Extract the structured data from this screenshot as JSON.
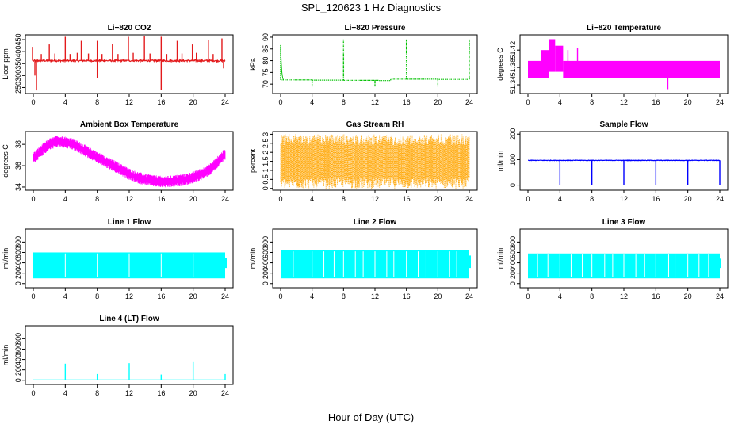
{
  "figure": {
    "title": "SPL_120623  1 Hz Diagnostics",
    "xlabel": "Hour of Day (UTC)"
  },
  "chart_data": [
    {
      "type": "line",
      "title": "Li−820 CO2",
      "ylabel": "Licor ppm",
      "color": "#e31a1c",
      "xlim": [
        0,
        24
      ],
      "ylim": [
        225,
        470
      ],
      "xticks": [
        0,
        4,
        8,
        12,
        16,
        20,
        24
      ],
      "yticks": [
        250,
        300,
        350,
        400,
        450
      ],
      "baseline": 362,
      "noise": 7,
      "spikes": [
        [
          -0.1,
          420
        ],
        [
          0.2,
          300
        ],
        [
          0.4,
          238
        ],
        [
          1.0,
          390
        ],
        [
          2.0,
          430
        ],
        [
          2.7,
          392
        ],
        [
          4.0,
          462
        ],
        [
          4.6,
          390
        ],
        [
          5.5,
          395
        ],
        [
          6.0,
          445
        ],
        [
          6.9,
          392
        ],
        [
          8.0,
          445
        ],
        [
          8.0,
          290
        ],
        [
          8.6,
          390
        ],
        [
          9.9,
          432
        ],
        [
          10.6,
          390
        ],
        [
          11.9,
          462
        ],
        [
          12.5,
          395
        ],
        [
          13.9,
          465
        ],
        [
          14.6,
          392
        ],
        [
          16.0,
          462
        ],
        [
          16.0,
          240
        ],
        [
          16.7,
          390
        ],
        [
          18.0,
          445
        ],
        [
          18.6,
          392
        ],
        [
          19.9,
          430
        ],
        [
          20.4,
          395
        ],
        [
          21.9,
          450
        ],
        [
          22.5,
          390
        ],
        [
          23.6,
          455
        ],
        [
          23.8,
          330
        ]
      ]
    },
    {
      "type": "line",
      "title": "Li−820 Pressure",
      "ylabel": "kPa",
      "color": "#00c000",
      "xlim": [
        0,
        24
      ],
      "ylim": [
        66,
        91
      ],
      "xticks": [
        0,
        4,
        8,
        12,
        16,
        20,
        24
      ],
      "yticks": [
        70,
        75,
        80,
        85,
        90
      ],
      "steps": [
        [
          0,
          71.8
        ],
        [
          4,
          71.7
        ],
        [
          8,
          71.6
        ],
        [
          12.5,
          71.5
        ],
        [
          14,
          72.1
        ],
        [
          20,
          72.0
        ],
        [
          24,
          72.0
        ]
      ],
      "spikes": [
        [
          0,
          87
        ],
        [
          8,
          89
        ],
        [
          16,
          89
        ],
        [
          24,
          89
        ],
        [
          4,
          69
        ],
        [
          12,
          69
        ],
        [
          20,
          69
        ]
      ]
    },
    {
      "type": "area",
      "title": "Li−820 Temperature",
      "ylabel": "degrees C",
      "color": "#ff00ff",
      "xlim": [
        0,
        24
      ],
      "ylim": [
        51.32,
        51.455
      ],
      "xticks": [
        0,
        4,
        8,
        12,
        16,
        20,
        24
      ],
      "yticks": [
        51.34,
        51.38,
        51.42
      ],
      "bands": [
        [
          0,
          1.6,
          51.355,
          51.395
        ],
        [
          1.6,
          2.6,
          51.355,
          51.42
        ],
        [
          2.6,
          3.4,
          51.37,
          51.445
        ],
        [
          3.4,
          4.4,
          51.37,
          51.43
        ],
        [
          4.4,
          24,
          51.355,
          51.395
        ]
      ],
      "spikes": [
        [
          5.0,
          51.42
        ],
        [
          6.2,
          51.425
        ],
        [
          17.5,
          51.33
        ]
      ]
    },
    {
      "type": "area",
      "title": "Ambient Box Temperature",
      "ylabel": "degrees C",
      "color": "#ff00ff",
      "xlim": [
        0,
        24
      ],
      "ylim": [
        33.7,
        39.2
      ],
      "xticks": [
        0,
        4,
        8,
        12,
        16,
        20,
        24
      ],
      "yticks": [
        34,
        36,
        38
      ],
      "center": [
        [
          0,
          36.7
        ],
        [
          1,
          37.4
        ],
        [
          2,
          38.0
        ],
        [
          3,
          38.3
        ],
        [
          4,
          38.2
        ],
        [
          5,
          38.0
        ],
        [
          6,
          37.6
        ],
        [
          7,
          37.2
        ],
        [
          8,
          36.8
        ],
        [
          9,
          36.4
        ],
        [
          10,
          36.0
        ],
        [
          11,
          35.6
        ],
        [
          12,
          35.2
        ],
        [
          13,
          34.9
        ],
        [
          14,
          34.7
        ],
        [
          15,
          34.6
        ],
        [
          16,
          34.5
        ],
        [
          17,
          34.5
        ],
        [
          18,
          34.6
        ],
        [
          19,
          34.7
        ],
        [
          20,
          34.9
        ],
        [
          21,
          35.2
        ],
        [
          22,
          35.6
        ],
        [
          23,
          36.3
        ],
        [
          24,
          37.1
        ]
      ],
      "halfwidth": 0.55
    },
    {
      "type": "area",
      "title": "Gas Stream RH",
      "ylabel": "percent",
      "color": "#ffa500",
      "xlim": [
        0,
        24
      ],
      "ylim": [
        -0.1,
        3.15
      ],
      "xticks": [
        0,
        4,
        8,
        12,
        16,
        20,
        24
      ],
      "yticks": [
        0.0,
        0.5,
        1.0,
        1.5,
        2.0,
        2.5,
        3.0
      ],
      "range": [
        0.0,
        3.0
      ]
    },
    {
      "type": "line",
      "title": "Sample Flow",
      "ylabel": "ml/min",
      "color": "#0000ff",
      "xlim": [
        0,
        24
      ],
      "ylim": [
        -20,
        210
      ],
      "xticks": [
        0,
        4,
        8,
        12,
        16,
        20,
        24
      ],
      "yticks": [
        0,
        100,
        200
      ],
      "baseline": 97,
      "noise": 2,
      "spikes": [
        [
          4,
          0
        ],
        [
          8,
          0
        ],
        [
          12,
          0
        ],
        [
          16,
          0
        ],
        [
          20,
          0
        ],
        [
          24,
          0
        ]
      ]
    },
    {
      "type": "area",
      "title": "Line 1 Flow",
      "ylabel": "ml/min",
      "color": "#00ffff",
      "xlim": [
        0,
        24
      ],
      "ylim": [
        -80,
        1050
      ],
      "xticks": [
        0,
        4,
        8,
        12,
        16,
        20,
        24
      ],
      "yticks": [
        0,
        200,
        400,
        600,
        800
      ],
      "range": [
        100,
        600
      ],
      "gaps": [
        4,
        8,
        12,
        16,
        20
      ]
    },
    {
      "type": "area",
      "title": "Line 2 Flow",
      "ylabel": "ml/min",
      "color": "#00ffff",
      "xlim": [
        0,
        24
      ],
      "ylim": [
        -80,
        1050
      ],
      "xticks": [
        0,
        4,
        8,
        12,
        16,
        20,
        24
      ],
      "yticks": [
        0,
        200,
        400,
        600,
        800
      ],
      "range": [
        100,
        640
      ],
      "gaps": [
        1.6,
        4,
        5.5,
        6.8,
        8,
        9.5,
        10.5,
        12,
        13.5,
        14.4,
        16,
        17.5,
        18.5,
        20,
        21.5,
        22.4
      ]
    },
    {
      "type": "area",
      "title": "Line 3 Flow",
      "ylabel": "ml/min",
      "color": "#00ffff",
      "xlim": [
        0,
        24
      ],
      "ylim": [
        -80,
        1050
      ],
      "xticks": [
        0,
        4,
        8,
        12,
        16,
        20,
        24
      ],
      "yticks": [
        0,
        200,
        400,
        600,
        800
      ],
      "range": [
        100,
        580
      ],
      "gaps": [
        1.2,
        2.5,
        4,
        5.4,
        6.8,
        8,
        9.6,
        10.6,
        12,
        13.5,
        14.6,
        16,
        17.6,
        18.4,
        20,
        21.4,
        22.6
      ]
    },
    {
      "type": "line",
      "title": "Line 4 (LT) Flow",
      "ylabel": "ml/min",
      "color": "#00ffff",
      "xlim": [
        0,
        24
      ],
      "ylim": [
        -80,
        1050
      ],
      "xticks": [
        0,
        4,
        8,
        12,
        16,
        20,
        24
      ],
      "yticks": [
        0,
        200,
        400,
        600,
        800
      ],
      "baseline": 5,
      "noise": 0,
      "spikes": [
        [
          4,
          320
        ],
        [
          8,
          120
        ],
        [
          12,
          330
        ],
        [
          16,
          110
        ],
        [
          20,
          350
        ],
        [
          24,
          120
        ]
      ]
    }
  ]
}
